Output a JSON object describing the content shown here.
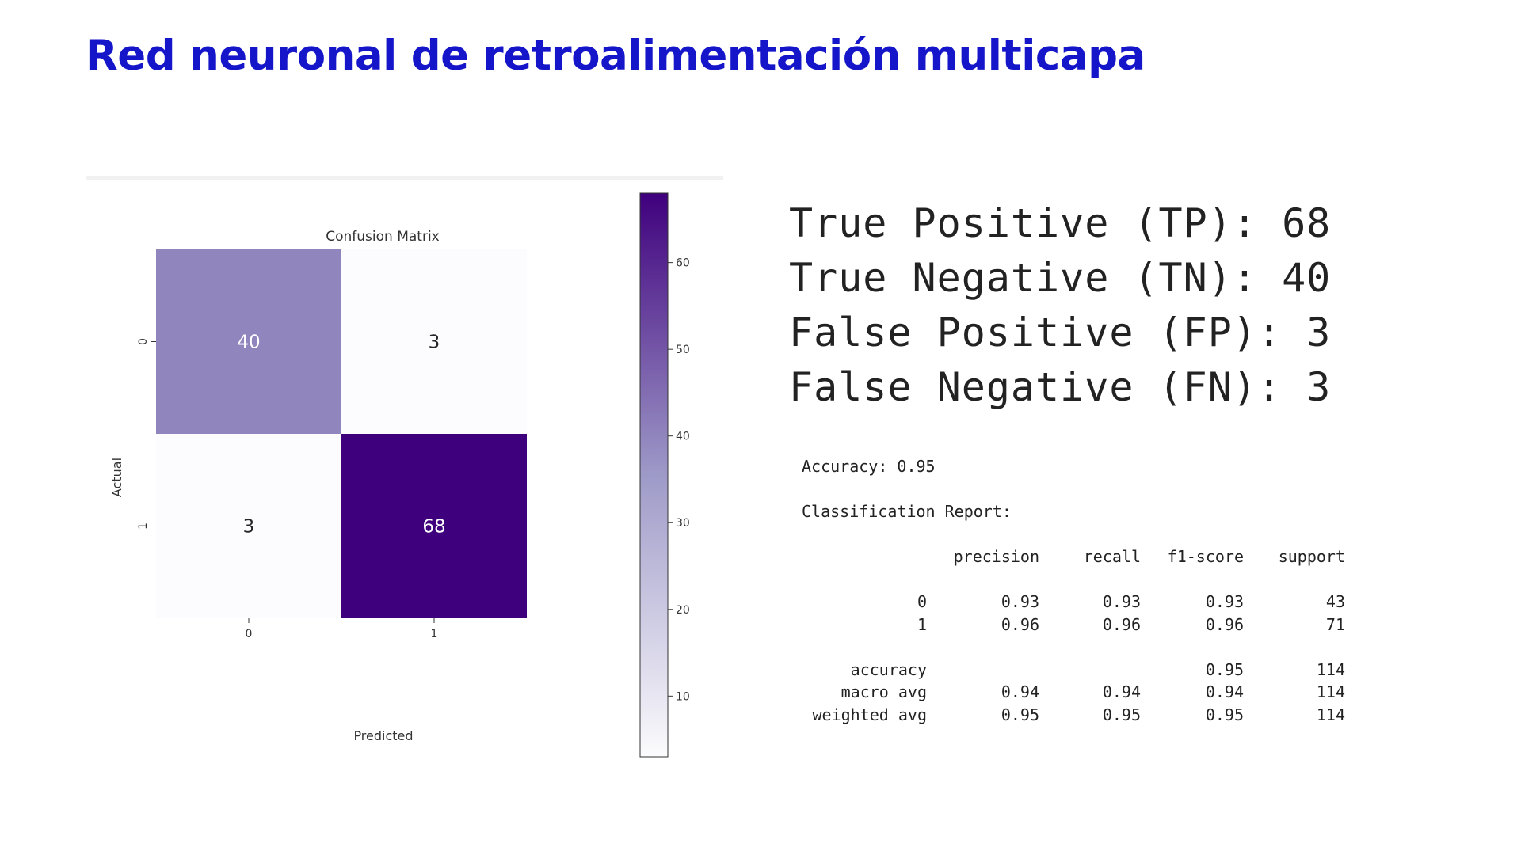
{
  "slide": {
    "title": "Red neuronal de retroalimentación multicapa"
  },
  "chart_data": {
    "type": "heatmap",
    "title": "Confusion Matrix",
    "xlabel": "Predicted",
    "ylabel": "Actual",
    "x_categories": [
      "0",
      "1"
    ],
    "y_categories": [
      "0",
      "1"
    ],
    "matrix": [
      [
        40,
        3
      ],
      [
        3,
        68
      ]
    ],
    "colorbar": {
      "vmin": 3,
      "vmax": 68,
      "ticks": [
        10,
        20,
        30,
        40,
        50,
        60
      ],
      "tick_labels": [
        "10",
        "20",
        "30",
        "40",
        "50",
        "60"
      ]
    },
    "colormap": {
      "low": "#fcfbfd",
      "mid": "#9e9ac8",
      "high": "#3f007d"
    },
    "grid": false,
    "colorbar_placement": "right"
  },
  "metrics": [
    {
      "label": "True Positive (TP): ",
      "value": "68"
    },
    {
      "label": "True Negative (TN): ",
      "value": "40"
    },
    {
      "label": "False Positive (FP): ",
      "value": "3"
    },
    {
      "label": "False Negative (FN): ",
      "value": "3"
    }
  ],
  "report": {
    "accuracy_line": "Accuracy: 0.95",
    "heading": "Classification Report:",
    "columns": [
      "",
      "precision",
      "recall",
      "f1-score",
      "support"
    ],
    "class_rows": [
      [
        "0",
        "0.93",
        "0.93",
        "0.93",
        "43"
      ],
      [
        "1",
        "0.96",
        "0.96",
        "0.96",
        "71"
      ]
    ],
    "summary_rows": [
      [
        "accuracy",
        "",
        "",
        "0.95",
        "114"
      ],
      [
        "macro avg",
        "0.94",
        "0.94",
        "0.94",
        "114"
      ],
      [
        "weighted avg",
        "0.95",
        "0.95",
        "0.95",
        "114"
      ]
    ]
  }
}
